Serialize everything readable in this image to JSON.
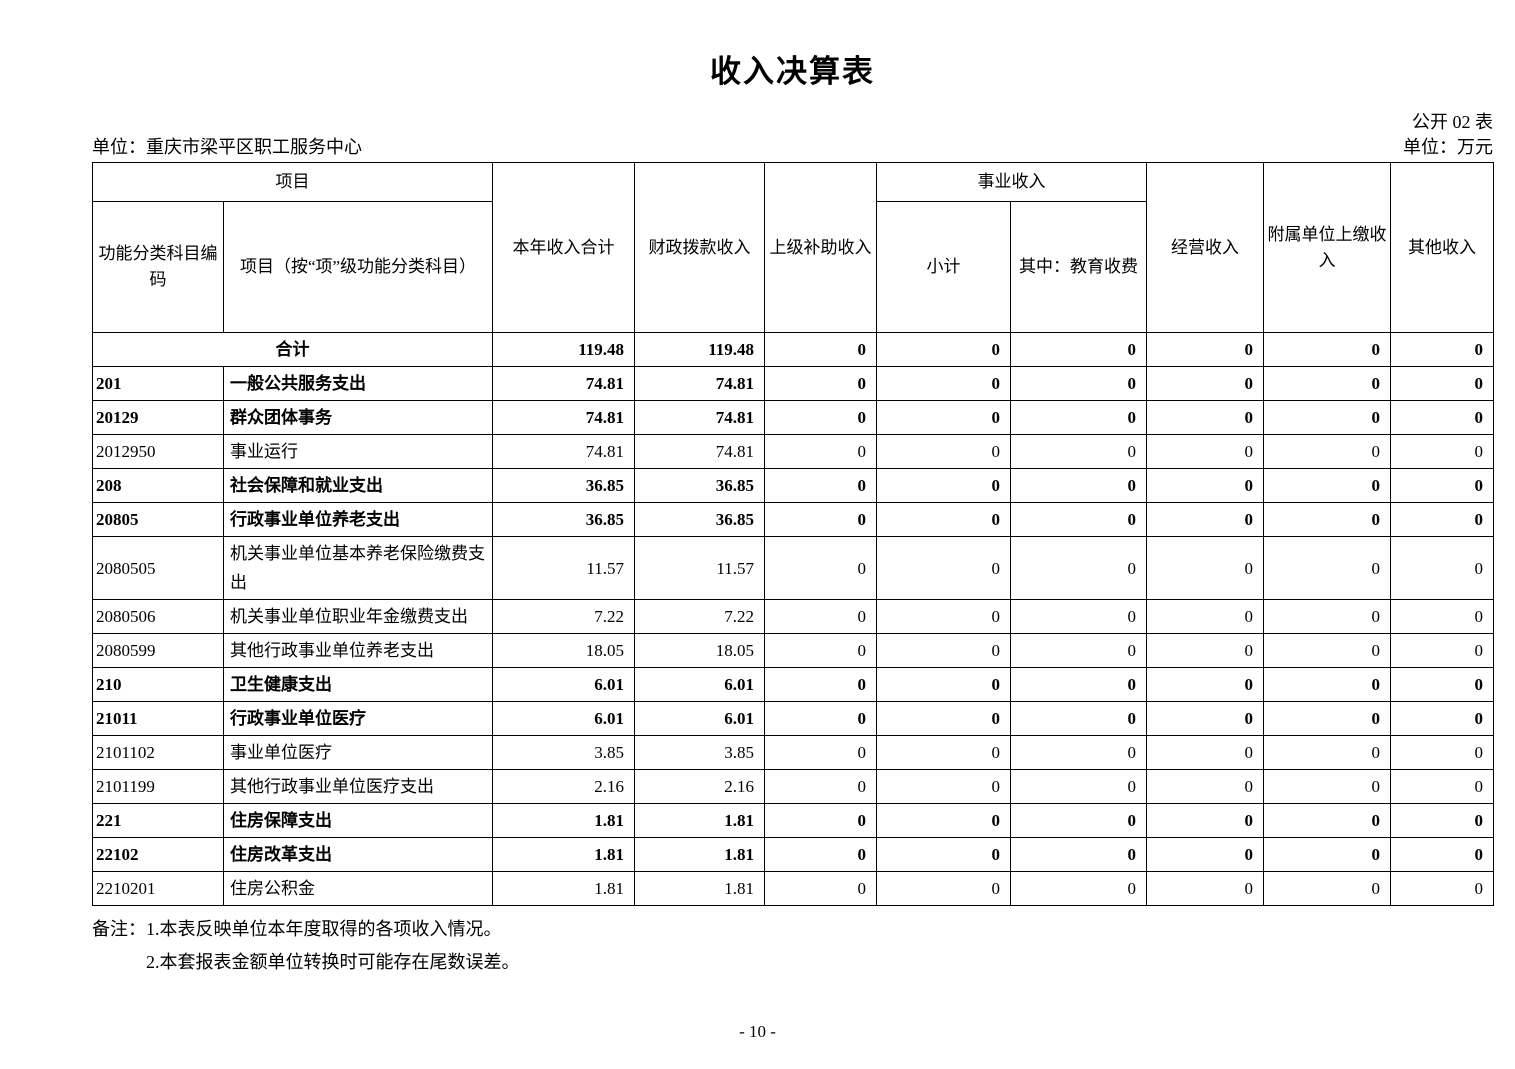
{
  "page": {
    "title": "收入决算表",
    "table_code": "公开 02 表",
    "org_unit": "单位：重庆市梁平区职工服务中心",
    "unit_label": "单位：万元",
    "page_number": "- 10 -",
    "notes": {
      "prefix": "备注：",
      "line1": "1.本表反映单位本年度取得的各项收入情况。",
      "line2": "2.本套报表金额单位转换时可能存在尾数误差。"
    }
  },
  "table": {
    "header": {
      "project_group": "项目",
      "code": "功能分类科目编码",
      "project_item": "项目（按“项”级功能分类科目）",
      "total_income": "本年收入合计",
      "fiscal_income": "财政拨款收入",
      "superior_subsidy": "上级补助收入",
      "business_income_group": "事业收入",
      "subtotal": "小计",
      "education_fee": "其中：教育收费",
      "operating_income": "经营收入",
      "affiliated_income": "附属单位上缴收入",
      "other_income": "其他收入"
    },
    "rows": [
      {
        "code": "",
        "name": "合计",
        "merged": true,
        "bold": true,
        "values": [
          "119.48",
          "119.48",
          "0",
          "0",
          "0",
          "0",
          "0",
          "0"
        ]
      },
      {
        "code": "201",
        "name": "一般公共服务支出",
        "bold": true,
        "values": [
          "74.81",
          "74.81",
          "0",
          "0",
          "0",
          "0",
          "0",
          "0"
        ]
      },
      {
        "code": "20129",
        "name": "群众团体事务",
        "bold": true,
        "values": [
          "74.81",
          "74.81",
          "0",
          "0",
          "0",
          "0",
          "0",
          "0"
        ]
      },
      {
        "code": "2012950",
        "name": "事业运行",
        "bold": false,
        "values": [
          "74.81",
          "74.81",
          "0",
          "0",
          "0",
          "0",
          "0",
          "0"
        ]
      },
      {
        "code": "208",
        "name": "社会保障和就业支出",
        "bold": true,
        "values": [
          "36.85",
          "36.85",
          "0",
          "0",
          "0",
          "0",
          "0",
          "0"
        ]
      },
      {
        "code": "20805",
        "name": "行政事业单位养老支出",
        "bold": true,
        "values": [
          "36.85",
          "36.85",
          "0",
          "0",
          "0",
          "0",
          "0",
          "0"
        ]
      },
      {
        "code": "2080505",
        "name": "机关事业单位基本养老保险缴费支出",
        "bold": false,
        "values": [
          "11.57",
          "11.57",
          "0",
          "0",
          "0",
          "0",
          "0",
          "0"
        ]
      },
      {
        "code": "2080506",
        "name": "机关事业单位职业年金缴费支出",
        "bold": false,
        "values": [
          "7.22",
          "7.22",
          "0",
          "0",
          "0",
          "0",
          "0",
          "0"
        ]
      },
      {
        "code": "2080599",
        "name": "其他行政事业单位养老支出",
        "bold": false,
        "values": [
          "18.05",
          "18.05",
          "0",
          "0",
          "0",
          "0",
          "0",
          "0"
        ]
      },
      {
        "code": "210",
        "name": "卫生健康支出",
        "bold": true,
        "values": [
          "6.01",
          "6.01",
          "0",
          "0",
          "0",
          "0",
          "0",
          "0"
        ]
      },
      {
        "code": "21011",
        "name": "行政事业单位医疗",
        "bold": true,
        "values": [
          "6.01",
          "6.01",
          "0",
          "0",
          "0",
          "0",
          "0",
          "0"
        ]
      },
      {
        "code": "2101102",
        "name": "事业单位医疗",
        "bold": false,
        "values": [
          "3.85",
          "3.85",
          "0",
          "0",
          "0",
          "0",
          "0",
          "0"
        ]
      },
      {
        "code": "2101199",
        "name": "其他行政事业单位医疗支出",
        "bold": false,
        "values": [
          "2.16",
          "2.16",
          "0",
          "0",
          "0",
          "0",
          "0",
          "0"
        ]
      },
      {
        "code": "221",
        "name": "住房保障支出",
        "bold": true,
        "values": [
          "1.81",
          "1.81",
          "0",
          "0",
          "0",
          "0",
          "0",
          "0"
        ]
      },
      {
        "code": "22102",
        "name": "住房改革支出",
        "bold": true,
        "values": [
          "1.81",
          "1.81",
          "0",
          "0",
          "0",
          "0",
          "0",
          "0"
        ]
      },
      {
        "code": "2210201",
        "name": "住房公积金",
        "bold": false,
        "values": [
          "1.81",
          "1.81",
          "0",
          "0",
          "0",
          "0",
          "0",
          "0"
        ]
      }
    ]
  }
}
